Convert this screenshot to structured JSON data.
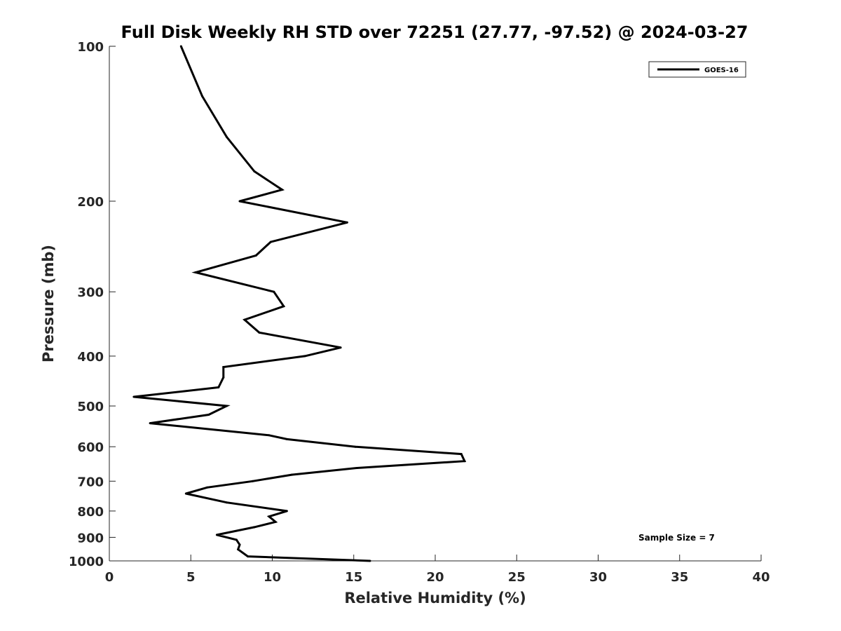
{
  "chart_data": {
    "type": "line",
    "title": "Full Disk Weekly RH STD over 72251 (27.77, -97.52) @ 2024-03-27",
    "xlabel": "Relative Humidity (%)",
    "ylabel": "Pressure (mb)",
    "xlim": [
      0,
      40
    ],
    "ylim": [
      100,
      1000
    ],
    "yscale": "log",
    "yreversed": true,
    "grid": false,
    "x_ticks": [
      0,
      5,
      10,
      15,
      20,
      25,
      30,
      35,
      40
    ],
    "x_tick_labels": [
      "0",
      "5",
      "10",
      "15",
      "20",
      "25",
      "30",
      "35",
      "40"
    ],
    "y_ticks": [
      100,
      200,
      300,
      400,
      500,
      600,
      700,
      800,
      900,
      1000
    ],
    "y_tick_labels": [
      "100",
      "200",
      "300",
      "400",
      "500",
      "600",
      "700",
      "800",
      "900",
      "1000"
    ],
    "legend": {
      "position": "top-right",
      "entries": [
        "GOES-16"
      ]
    },
    "annotation": "Sample Size = 7",
    "series": [
      {
        "name": "GOES-16",
        "color": "#000000",
        "points": [
          [
            4.4,
            100
          ],
          [
            5.7,
            125
          ],
          [
            7.2,
            150
          ],
          [
            8.9,
            175
          ],
          [
            10.6,
            190
          ],
          [
            8.0,
            200
          ],
          [
            14.6,
            220
          ],
          [
            9.9,
            240
          ],
          [
            9.0,
            255
          ],
          [
            5.3,
            275
          ],
          [
            10.1,
            300
          ],
          [
            10.7,
            320
          ],
          [
            8.3,
            340
          ],
          [
            9.2,
            360
          ],
          [
            14.2,
            385
          ],
          [
            12.0,
            400
          ],
          [
            7.0,
            420
          ],
          [
            7.0,
            440
          ],
          [
            6.7,
            460
          ],
          [
            1.5,
            480
          ],
          [
            7.2,
            500
          ],
          [
            6.1,
            520
          ],
          [
            2.5,
            540
          ],
          [
            9.8,
            570
          ],
          [
            10.9,
            580
          ],
          [
            15.1,
            600
          ],
          [
            21.6,
            620
          ],
          [
            21.8,
            640
          ],
          [
            15.2,
            660
          ],
          [
            11.2,
            680
          ],
          [
            8.8,
            700
          ],
          [
            6.0,
            720
          ],
          [
            4.7,
            740
          ],
          [
            7.2,
            770
          ],
          [
            10.9,
            800
          ],
          [
            9.8,
            820
          ],
          [
            10.2,
            840
          ],
          [
            8.9,
            860
          ],
          [
            6.6,
            890
          ],
          [
            7.8,
            910
          ],
          [
            8.0,
            930
          ],
          [
            7.9,
            950
          ],
          [
            8.5,
            980
          ],
          [
            16.0,
            1000
          ]
        ]
      }
    ]
  }
}
